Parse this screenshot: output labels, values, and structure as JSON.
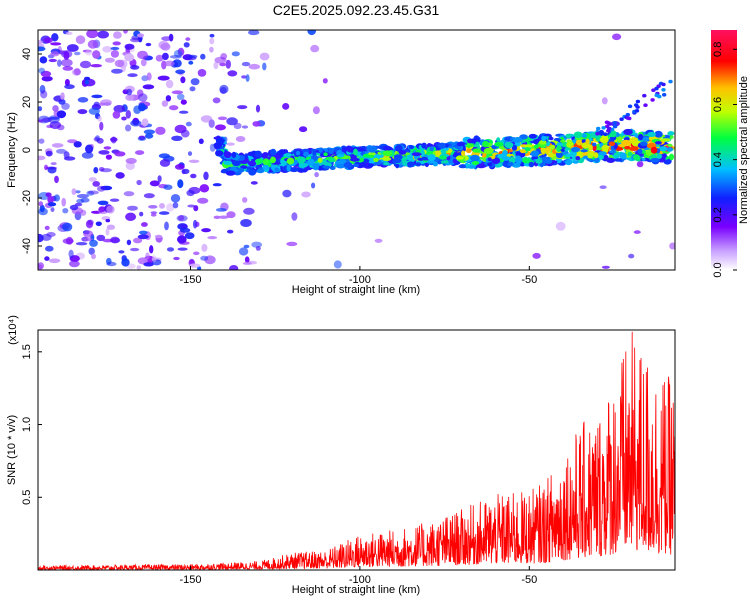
{
  "title": "C2E5.2025.092.23.45.G31",
  "chart_data": [
    {
      "type": "heatmap",
      "xlabel": "Height of straight line (km)",
      "ylabel": "Frequency (Hz)",
      "xlim": [
        -195,
        -7
      ],
      "ylim": [
        -50,
        50
      ],
      "xticks": [
        -150,
        -100,
        -50
      ],
      "yticks": [
        -40,
        -20,
        0,
        20,
        40
      ],
      "colorbar": {
        "label": "Normalized spectral amplitude",
        "range": [
          0.0,
          0.87
        ],
        "ticks": [
          "0.0",
          "0.2",
          "0.4",
          "0.6",
          "0.8"
        ],
        "tick_values": [
          0,
          0.2,
          0.4,
          0.6,
          0.8
        ],
        "colors": [
          "#ffffff",
          "#7a00ff",
          "#1020ff",
          "#00c0ff",
          "#00ff40",
          "#c0ff00",
          "#ffc000",
          "#ff0000",
          "#ff1060"
        ]
      },
      "trend": {
        "x": [
          -140,
          -100,
          -60,
          -20,
          -7
        ],
        "y": [
          -6,
          -3,
          -1,
          2,
          1
        ]
      }
    },
    {
      "type": "line",
      "xlabel": "Height of straight line (km)",
      "ylabel": "SNR (10 * v/v)",
      "scale_label": "(x10⁴)",
      "xlim": [
        -195,
        -7
      ],
      "ylim": [
        0,
        1.65
      ],
      "xticks": [
        -150,
        -100,
        -50
      ],
      "yticks": [
        "0.5",
        "1.0",
        "1.5"
      ],
      "ytick_values": [
        0.5,
        1.0,
        1.5
      ],
      "series": [
        {
          "color": "#ff0000",
          "envelope": {
            "x": [
              -195,
              -150,
              -130,
              -120,
              -110,
              -100,
              -90,
              -80,
              -70,
              -60,
              -50,
              -45,
              -40,
              -35,
              -30,
              -25,
              -20,
              -15,
              -10,
              -7
            ],
            "max": [
              0.03,
              0.04,
              0.06,
              0.12,
              0.14,
              0.25,
              0.28,
              0.33,
              0.42,
              0.52,
              0.55,
              0.62,
              0.85,
              1.0,
              1.1,
              1.35,
              1.65,
              1.5,
              1.35,
              1.3
            ]
          }
        }
      ]
    }
  ]
}
